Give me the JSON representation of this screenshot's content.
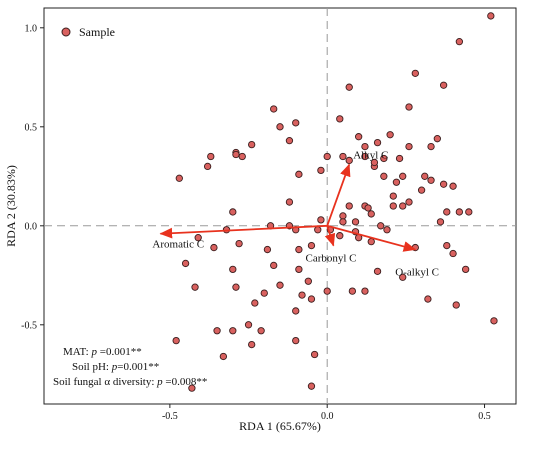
{
  "chart_data": {
    "type": "scatter",
    "title": "",
    "xlabel": "RDA 1 (65.67%)",
    "ylabel": "RDA 2 (30.83%)",
    "xlim": [
      -0.9,
      0.6
    ],
    "ylim": [
      -0.9,
      1.1
    ],
    "x_ticks": [
      -0.5,
      0.0,
      0.5
    ],
    "x_tick_labels": [
      "-0.5",
      "0.0",
      "0.5"
    ],
    "y_ticks": [
      -0.5,
      0.0,
      0.5,
      1.0
    ],
    "y_tick_labels": [
      "-0.5",
      "0.0",
      "0.5",
      "1.0"
    ],
    "grid": false,
    "zero_lines": true,
    "legend": {
      "position": "top-left",
      "entries": [
        "Sample"
      ]
    },
    "colors": {
      "point_fill": "#d9615f",
      "point_stroke": "#3a1e1e",
      "arrow": "#e8321e",
      "zero_line": "#9a9a9a"
    },
    "series": [
      {
        "name": "Sample",
        "points": [
          [
            0.52,
            1.06
          ],
          [
            0.42,
            0.93
          ],
          [
            0.28,
            0.77
          ],
          [
            0.37,
            0.71
          ],
          [
            0.07,
            0.7
          ],
          [
            0.26,
            0.6
          ],
          [
            -0.17,
            0.59
          ],
          [
            -0.1,
            0.52
          ],
          [
            -0.15,
            0.5
          ],
          [
            0.04,
            0.54
          ],
          [
            0.1,
            0.45
          ],
          [
            0.12,
            0.4
          ],
          [
            0.16,
            0.42
          ],
          [
            0.2,
            0.46
          ],
          [
            0.26,
            0.4
          ],
          [
            0.33,
            0.4
          ],
          [
            0.35,
            0.44
          ],
          [
            -0.12,
            0.43
          ],
          [
            -0.24,
            0.41
          ],
          [
            -0.29,
            0.37
          ],
          [
            -0.29,
            0.36
          ],
          [
            -0.27,
            0.35
          ],
          [
            -0.37,
            0.35
          ],
          [
            -0.38,
            0.3
          ],
          [
            -0.47,
            0.24
          ],
          [
            0.0,
            0.35
          ],
          [
            0.05,
            0.35
          ],
          [
            0.12,
            0.35
          ],
          [
            0.07,
            0.33
          ],
          [
            -0.02,
            0.28
          ],
          [
            -0.09,
            0.26
          ],
          [
            0.15,
            0.3
          ],
          [
            0.15,
            0.32
          ],
          [
            0.18,
            0.34
          ],
          [
            0.23,
            0.34
          ],
          [
            0.18,
            0.25
          ],
          [
            0.22,
            0.22
          ],
          [
            0.24,
            0.25
          ],
          [
            0.31,
            0.25
          ],
          [
            0.33,
            0.23
          ],
          [
            0.37,
            0.21
          ],
          [
            0.3,
            0.18
          ],
          [
            0.4,
            0.2
          ],
          [
            0.21,
            0.15
          ],
          [
            0.26,
            0.12
          ],
          [
            0.12,
            0.1
          ],
          [
            0.07,
            0.1
          ],
          [
            0.13,
            0.09
          ],
          [
            0.05,
            0.05
          ],
          [
            0.09,
            0.02
          ],
          [
            0.21,
            0.1
          ],
          [
            0.24,
            0.1
          ],
          [
            0.38,
            0.07
          ],
          [
            0.42,
            0.07
          ],
          [
            0.45,
            0.07
          ],
          [
            0.36,
            0.02
          ],
          [
            0.17,
            0.0
          ],
          [
            0.19,
            -0.02
          ],
          [
            0.09,
            -0.03
          ],
          [
            0.04,
            -0.05
          ],
          [
            0.01,
            -0.02
          ],
          [
            -0.02,
            0.03
          ],
          [
            -0.03,
            -0.02
          ],
          [
            0.05,
            0.02
          ],
          [
            0.1,
            -0.06
          ],
          [
            0.14,
            -0.08
          ],
          [
            0.28,
            -0.11
          ],
          [
            0.38,
            -0.1
          ],
          [
            0.4,
            -0.14
          ],
          [
            0.44,
            -0.22
          ],
          [
            0.16,
            -0.23
          ],
          [
            0.12,
            -0.33
          ],
          [
            0.08,
            -0.33
          ],
          [
            0.24,
            -0.26
          ],
          [
            0.32,
            -0.37
          ],
          [
            0.41,
            -0.4
          ],
          [
            0.53,
            -0.48
          ],
          [
            0.0,
            -0.33
          ],
          [
            -0.05,
            -0.1
          ],
          [
            -0.1,
            -0.02
          ],
          [
            -0.12,
            0.0
          ],
          [
            -0.18,
            0.0
          ],
          [
            -0.3,
            0.07
          ],
          [
            -0.32,
            -0.02
          ],
          [
            -0.36,
            -0.11
          ],
          [
            -0.3,
            -0.22
          ],
          [
            -0.19,
            -0.12
          ],
          [
            -0.17,
            -0.2
          ],
          [
            -0.15,
            -0.3
          ],
          [
            -0.09,
            -0.12
          ],
          [
            -0.09,
            -0.22
          ],
          [
            -0.06,
            -0.28
          ],
          [
            -0.05,
            -0.37
          ],
          [
            -0.08,
            -0.35
          ],
          [
            -0.1,
            -0.43
          ],
          [
            -0.2,
            -0.34
          ],
          [
            -0.21,
            -0.53
          ],
          [
            -0.23,
            -0.39
          ],
          [
            -0.25,
            -0.5
          ],
          [
            -0.3,
            -0.53
          ],
          [
            -0.24,
            -0.6
          ],
          [
            -0.33,
            -0.66
          ],
          [
            -0.42,
            -0.31
          ],
          [
            -0.48,
            -0.58
          ],
          [
            -0.43,
            -0.82
          ],
          [
            -0.29,
            -0.31
          ],
          [
            -0.35,
            -0.53
          ],
          [
            -0.1,
            -0.58
          ],
          [
            -0.04,
            -0.65
          ],
          [
            -0.05,
            -0.81
          ],
          [
            -0.45,
            -0.19
          ],
          [
            -0.41,
            -0.06
          ],
          [
            -0.28,
            -0.09
          ],
          [
            -0.12,
            0.12
          ],
          [
            0.14,
            0.06
          ]
        ]
      }
    ],
    "vectors": [
      {
        "label": "Alkyl C",
        "x": 0.07,
        "y": 0.31
      },
      {
        "label": "Aromatic C",
        "x": -0.53,
        "y": -0.04
      },
      {
        "label": "Carbonyl C",
        "x": 0.02,
        "y": -0.1
      },
      {
        "label": "O-alkyl C",
        "x": 0.28,
        "y": -0.12
      }
    ],
    "annotations": [
      {
        "label": "MAT: ",
        "p_label": "p",
        "value": " =0.001**"
      },
      {
        "label": "Soil pH: ",
        "p_label": "p",
        "value": "=0.001**"
      },
      {
        "label": "Soil fungal α diversity: ",
        "p_label": "p",
        "value": " =0.008**"
      }
    ]
  }
}
